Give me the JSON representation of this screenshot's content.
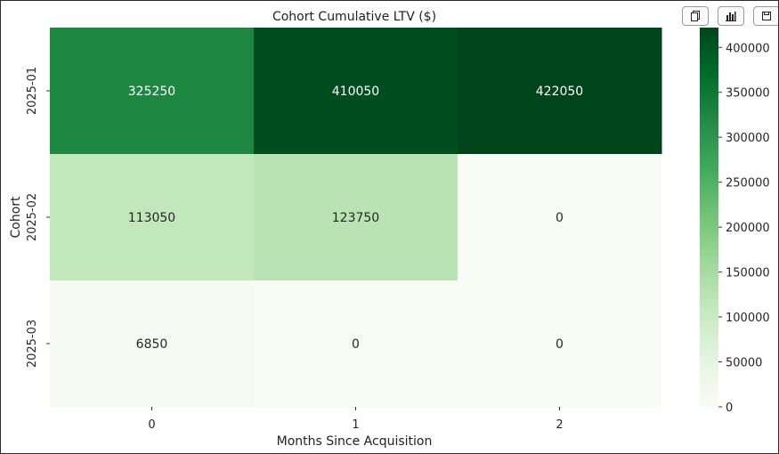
{
  "toolbar": {
    "buttons": [
      {
        "name": "copy-button",
        "icon": "copy-icon"
      },
      {
        "name": "chart-button",
        "icon": "bar-chart-icon"
      },
      {
        "name": "save-button",
        "icon": "save-icon"
      }
    ]
  },
  "chart_data": {
    "type": "heatmap",
    "title": "Cohort Cumulative LTV ($)",
    "xlabel": "Months Since Acquisition",
    "ylabel": "Cohort",
    "x_categories": [
      "0",
      "1",
      "2"
    ],
    "y_categories": [
      "2025-01",
      "2025-02",
      "2025-03"
    ],
    "values": [
      [
        325250,
        410050,
        422050
      ],
      [
        113050,
        123750,
        0
      ],
      [
        6850,
        0,
        0
      ]
    ],
    "annotations": true,
    "colormap": "Greens",
    "color_low": "#f7fcf5",
    "color_high": "#00441b",
    "colorbar": {
      "range": [
        0,
        422050
      ],
      "ticks": [
        0,
        50000,
        100000,
        150000,
        200000,
        250000,
        300000,
        350000,
        400000
      ]
    }
  }
}
